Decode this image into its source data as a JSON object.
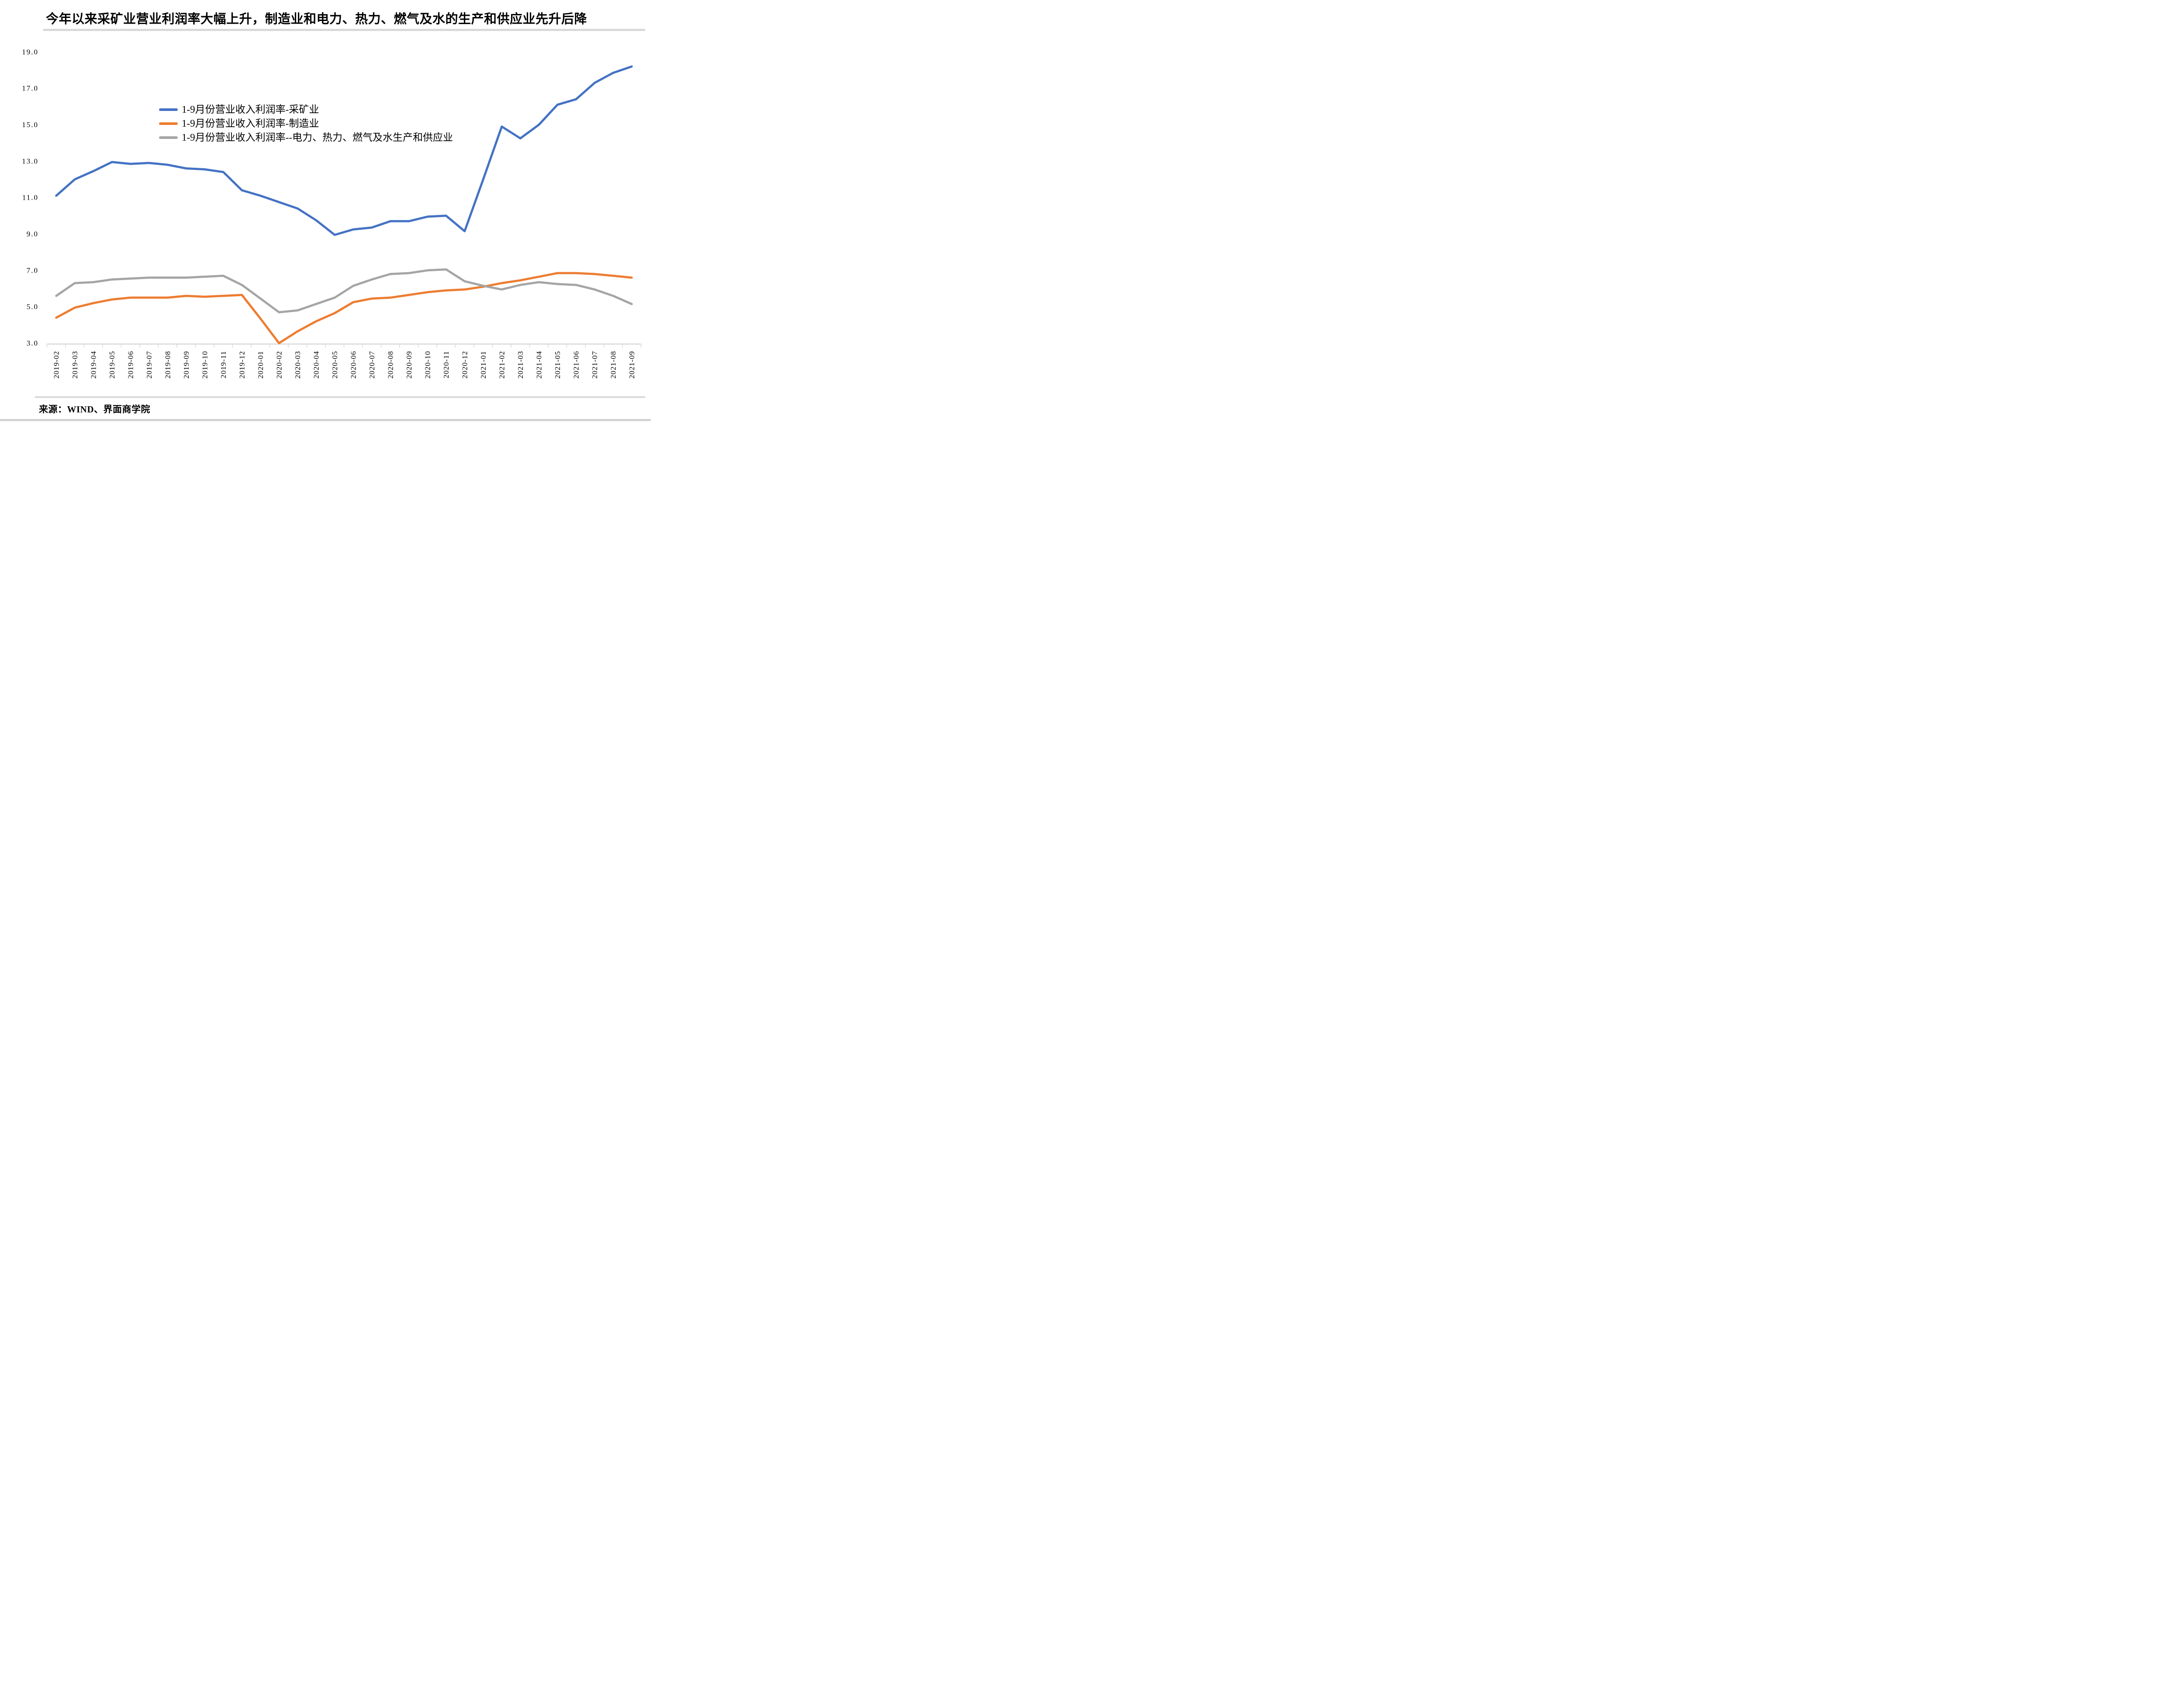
{
  "title": "今年以来采矿业营业利润率大幅上升，制造业和电力、热力、燃气及水的生产和供应业先升后降",
  "source": "来源：WIND、界面商学院",
  "colors": {
    "mining_blue": "#4472C4",
    "manufacturing_orange": "#ED7D31",
    "utilities_gray": "#A5A5A5",
    "divider_gray": "#D9D9D9",
    "axis_gray": "#D9D9D9",
    "text_black": "#000000"
  },
  "chart_data": {
    "type": "line",
    "title": "今年以来采矿业营业利润率大幅上升，制造业和电力、热力、燃气及水的生产和供应业先升后降",
    "xlabel": "",
    "ylabel": "",
    "ylim": [
      3.0,
      19.0
    ],
    "y_tick_labels": [
      "3.0",
      "5.0",
      "7.0",
      "9.0",
      "11.0",
      "13.0",
      "15.0",
      "17.0",
      "19.0"
    ],
    "grid": false,
    "legend_position": "inside-top-left",
    "categories": [
      "2019-02",
      "2019-03",
      "2019-04",
      "2019-05",
      "2019-06",
      "2019-07",
      "2019-08",
      "2019-09",
      "2019-10",
      "2019-11",
      "2019-12",
      "2020-01",
      "2020-02",
      "2020-03",
      "2020-04",
      "2020-05",
      "2020-06",
      "2020-07",
      "2020-08",
      "2020-09",
      "2020-10",
      "2020-11",
      "2020-12",
      "2021-01",
      "2021-02",
      "2021-03",
      "2021-04",
      "2021-05",
      "2021-06",
      "2021-07",
      "2021-08",
      "2021-09"
    ],
    "series": [
      {
        "name": "1-9月份营业收入利润率-采矿业",
        "color": "#4472C4",
        "values": [
          11.1,
          12.0,
          12.45,
          12.95,
          12.85,
          12.9,
          12.8,
          12.6,
          12.55,
          12.4,
          11.4,
          11.1,
          10.75,
          10.4,
          9.75,
          8.95,
          9.25,
          9.35,
          9.7,
          9.7,
          9.95,
          10.0,
          9.15,
          12.0,
          14.9,
          14.25,
          15.0,
          16.1,
          16.4,
          17.3,
          17.85,
          18.2
        ]
      },
      {
        "name": "1-9月份营业收入利润率-制造业",
        "color": "#ED7D31",
        "values": [
          4.4,
          4.95,
          5.2,
          5.4,
          5.5,
          5.5,
          5.5,
          5.6,
          5.55,
          5.6,
          5.65,
          4.35,
          3.0,
          3.65,
          4.2,
          4.65,
          5.25,
          5.45,
          5.5,
          5.65,
          5.8,
          5.9,
          5.95,
          6.1,
          6.3,
          6.45,
          6.65,
          6.85,
          6.85,
          6.8,
          6.7,
          6.6
        ]
      },
      {
        "name": "1-9月份营业收入利润率--电力、热力、燃气及水生产和供应业",
        "color": "#A5A5A5",
        "values": [
          5.6,
          6.3,
          6.35,
          6.5,
          6.55,
          6.6,
          6.6,
          6.6,
          6.65,
          6.7,
          6.2,
          5.45,
          4.7,
          4.8,
          5.15,
          5.5,
          6.15,
          6.5,
          6.8,
          6.85,
          7.0,
          7.05,
          6.4,
          6.15,
          5.95,
          6.2,
          6.35,
          6.25,
          6.2,
          5.95,
          5.6,
          5.15
        ]
      }
    ]
  }
}
